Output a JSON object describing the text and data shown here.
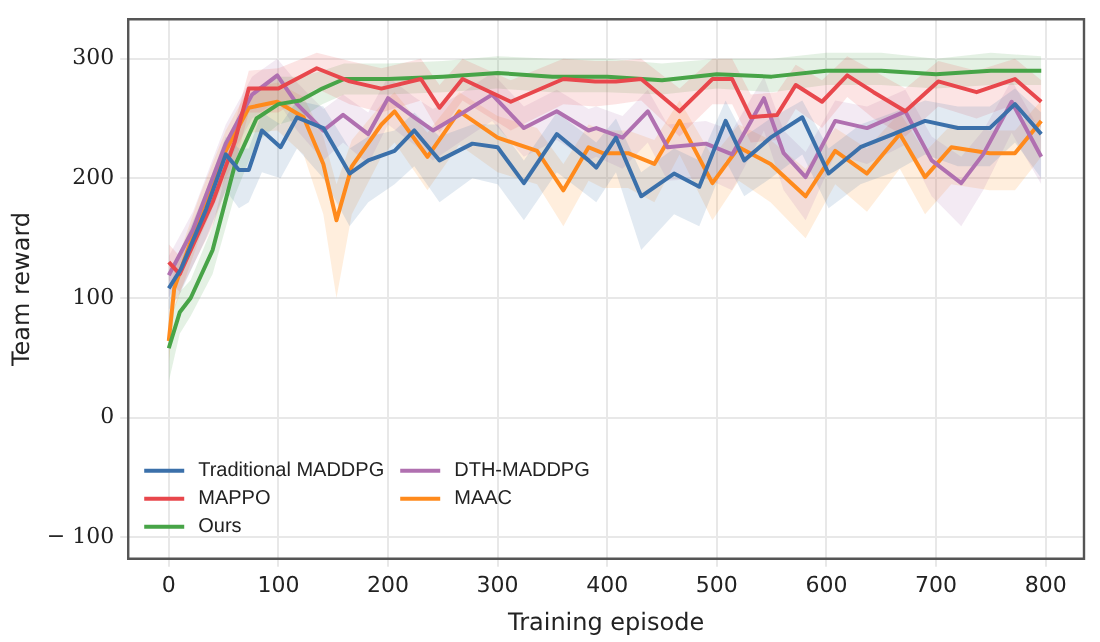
{
  "chart_data": {
    "type": "line",
    "xlabel": "Training episode",
    "ylabel": "Team reward",
    "xlim": [
      -37,
      835
    ],
    "ylim": [
      -118,
      333
    ],
    "xticks": [
      0,
      100,
      200,
      300,
      400,
      500,
      600,
      700,
      800
    ],
    "yticks": [
      {
        "value": -100,
        "label": "− 100"
      },
      0,
      100,
      200,
      300
    ],
    "grid": true,
    "legend": "bottom left",
    "marker": "none",
    "line_style": "solid",
    "series": [
      {
        "name": "Traditional MADDPG",
        "color": "#3b70aa",
        "x": [
          0,
          11,
          34,
          52,
          64,
          73,
          85,
          102,
          117,
          141,
          165,
          182,
          206,
          224,
          247,
          277,
          300,
          324,
          354,
          383,
          390,
          408,
          431,
          461,
          484,
          508,
          525,
          549,
          578,
          602,
          631,
          661,
          690,
          720,
          749,
          772,
          796
        ],
        "values": [
          108,
          124,
          174,
          220,
          207,
          207,
          240,
          226,
          251,
          242,
          204,
          215,
          223,
          240,
          215,
          229,
          226,
          196,
          237,
          215,
          209,
          234,
          185,
          204,
          193,
          248,
          215,
          234,
          251,
          204,
          226,
          237,
          248,
          242,
          242,
          262,
          237
        ],
        "lower": [
          90,
          105,
          150,
          190,
          175,
          180,
          205,
          200,
          225,
          200,
          160,
          180,
          195,
          210,
          180,
          200,
          195,
          165,
          205,
          185,
          180,
          205,
          140,
          170,
          160,
          215,
          185,
          200,
          220,
          175,
          195,
          205,
          220,
          210,
          210,
          230,
          200
        ],
        "upper": [
          120,
          140,
          190,
          235,
          225,
          225,
          255,
          245,
          265,
          260,
          225,
          235,
          240,
          255,
          235,
          245,
          245,
          215,
          255,
          235,
          230,
          250,
          205,
          225,
          215,
          265,
          235,
          250,
          265,
          225,
          245,
          255,
          265,
          260,
          260,
          275,
          255
        ]
      },
      {
        "name": "MAPPO",
        "color": "#e8474c",
        "x": [
          0,
          10,
          40,
          60,
          73,
          100,
          135,
          165,
          194,
          230,
          247,
          268,
          312,
          360,
          389,
          408,
          431,
          466,
          496,
          514,
          531,
          555,
          572,
          596,
          619,
          643,
          672,
          702,
          737,
          772,
          796
        ],
        "values": [
          130,
          120,
          180,
          230,
          275,
          275,
          292,
          281,
          275,
          283,
          259,
          283,
          264,
          283,
          281,
          281,
          283,
          256,
          283,
          283,
          251,
          253,
          278,
          264,
          286,
          272,
          256,
          281,
          272,
          283,
          264
        ],
        "lower": [
          115,
          105,
          160,
          210,
          255,
          255,
          275,
          262,
          255,
          265,
          238,
          265,
          240,
          262,
          260,
          262,
          265,
          235,
          262,
          262,
          230,
          232,
          258,
          242,
          268,
          250,
          235,
          260,
          250,
          262,
          242
        ],
        "upper": [
          145,
          135,
          195,
          245,
          290,
          292,
          305,
          298,
          292,
          300,
          278,
          300,
          282,
          300,
          298,
          298,
          300,
          275,
          300,
          300,
          270,
          272,
          295,
          282,
          302,
          290,
          275,
          298,
          290,
          300,
          282
        ]
      },
      {
        "name": "Ours",
        "color": "#47a447",
        "x": [
          0,
          10,
          20,
          40,
          60,
          80,
          100,
          120,
          140,
          160,
          200,
          250,
          300,
          350,
          400,
          450,
          500,
          550,
          600,
          650,
          700,
          750,
          796
        ],
        "values": [
          58,
          88,
          100,
          140,
          210,
          250,
          262,
          265,
          275,
          283,
          283,
          285,
          288,
          285,
          285,
          282,
          287,
          285,
          290,
          290,
          287,
          290,
          290
        ],
        "lower": [
          30,
          70,
          85,
          120,
          185,
          230,
          245,
          250,
          262,
          270,
          270,
          272,
          275,
          272,
          272,
          270,
          275,
          272,
          278,
          278,
          275,
          278,
          278
        ],
        "upper": [
          80,
          105,
          115,
          160,
          235,
          275,
          285,
          285,
          290,
          296,
          296,
          298,
          302,
          300,
          300,
          296,
          300,
          300,
          305,
          305,
          300,
          305,
          302
        ]
      },
      {
        "name": "DTH-MADDPG",
        "color": "#b070b0",
        "x": [
          0,
          22,
          52,
          76,
          99,
          117,
          141,
          159,
          182,
          200,
          224,
          241,
          265,
          295,
          324,
          354,
          383,
          390,
          414,
          437,
          455,
          490,
          514,
          543,
          561,
          581,
          608,
          637,
          672,
          696,
          723,
          743,
          769,
          796
        ],
        "values": [
          119,
          157,
          229,
          270,
          286,
          262,
          240,
          253,
          237,
          267,
          251,
          240,
          253,
          270,
          242,
          256,
          240,
          242,
          234,
          256,
          226,
          229,
          220,
          267,
          221,
          201,
          248,
          242,
          256,
          215,
          196,
          220,
          264,
          218
        ],
        "lower": [
          100,
          140,
          210,
          250,
          265,
          240,
          215,
          230,
          212,
          245,
          228,
          215,
          230,
          248,
          218,
          232,
          215,
          218,
          208,
          230,
          198,
          200,
          190,
          240,
          190,
          165,
          220,
          212,
          228,
          185,
          160,
          190,
          238,
          195
        ],
        "upper": [
          135,
          172,
          245,
          285,
          300,
          280,
          258,
          270,
          255,
          285,
          268,
          258,
          270,
          288,
          260,
          274,
          258,
          260,
          252,
          274,
          245,
          248,
          240,
          285,
          240,
          222,
          265,
          260,
          274,
          235,
          218,
          240,
          282,
          238
        ]
      },
      {
        "name": "MAAC",
        "color": "#ff8a1c",
        "x": [
          0,
          5,
          28,
          52,
          73,
          99,
          123,
          141,
          153,
          167,
          194,
          206,
          236,
          265,
          300,
          336,
          360,
          383,
          396,
          419,
          443,
          466,
          496,
          520,
          549,
          581,
          608,
          637,
          667,
          690,
          714,
          749,
          772,
          796
        ],
        "values": [
          64,
          108,
          168,
          223,
          259,
          264,
          251,
          212,
          165,
          210,
          245,
          256,
          218,
          256,
          234,
          223,
          190,
          226,
          221,
          221,
          212,
          248,
          196,
          226,
          212,
          185,
          223,
          204,
          237,
          201,
          226,
          221,
          221,
          248
        ],
        "lower": [
          45,
          90,
          150,
          200,
          238,
          240,
          220,
          170,
          100,
          170,
          218,
          230,
          190,
          228,
          205,
          195,
          160,
          198,
          192,
          192,
          180,
          220,
          165,
          198,
          180,
          150,
          195,
          172,
          208,
          170,
          195,
          190,
          190,
          218
        ],
        "upper": [
          85,
          125,
          185,
          240,
          275,
          280,
          268,
          235,
          195,
          232,
          262,
          272,
          238,
          272,
          252,
          242,
          212,
          245,
          240,
          240,
          232,
          265,
          218,
          245,
          232,
          208,
          242,
          225,
          255,
          222,
          245,
          240,
          240,
          265
        ]
      }
    ]
  }
}
